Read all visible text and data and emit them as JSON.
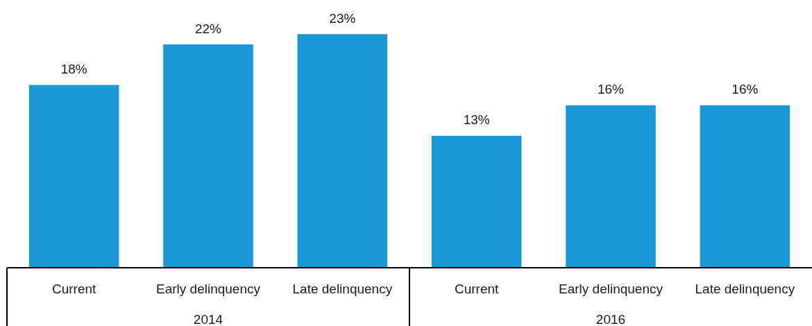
{
  "chart_data": {
    "type": "bar",
    "categories": [
      "Current",
      "Early delinquency",
      "Late delinquency",
      "Current",
      "Early delinquency",
      "Late delinquency"
    ],
    "values": [
      18,
      22,
      23,
      13,
      16,
      16
    ],
    "value_labels": [
      "18%",
      "22%",
      "23%",
      "13%",
      "16%",
      "16%"
    ],
    "color": "#1a98d5",
    "annotations": [
      "2014",
      "2016"
    ],
    "grid": false,
    "legend": false
  }
}
